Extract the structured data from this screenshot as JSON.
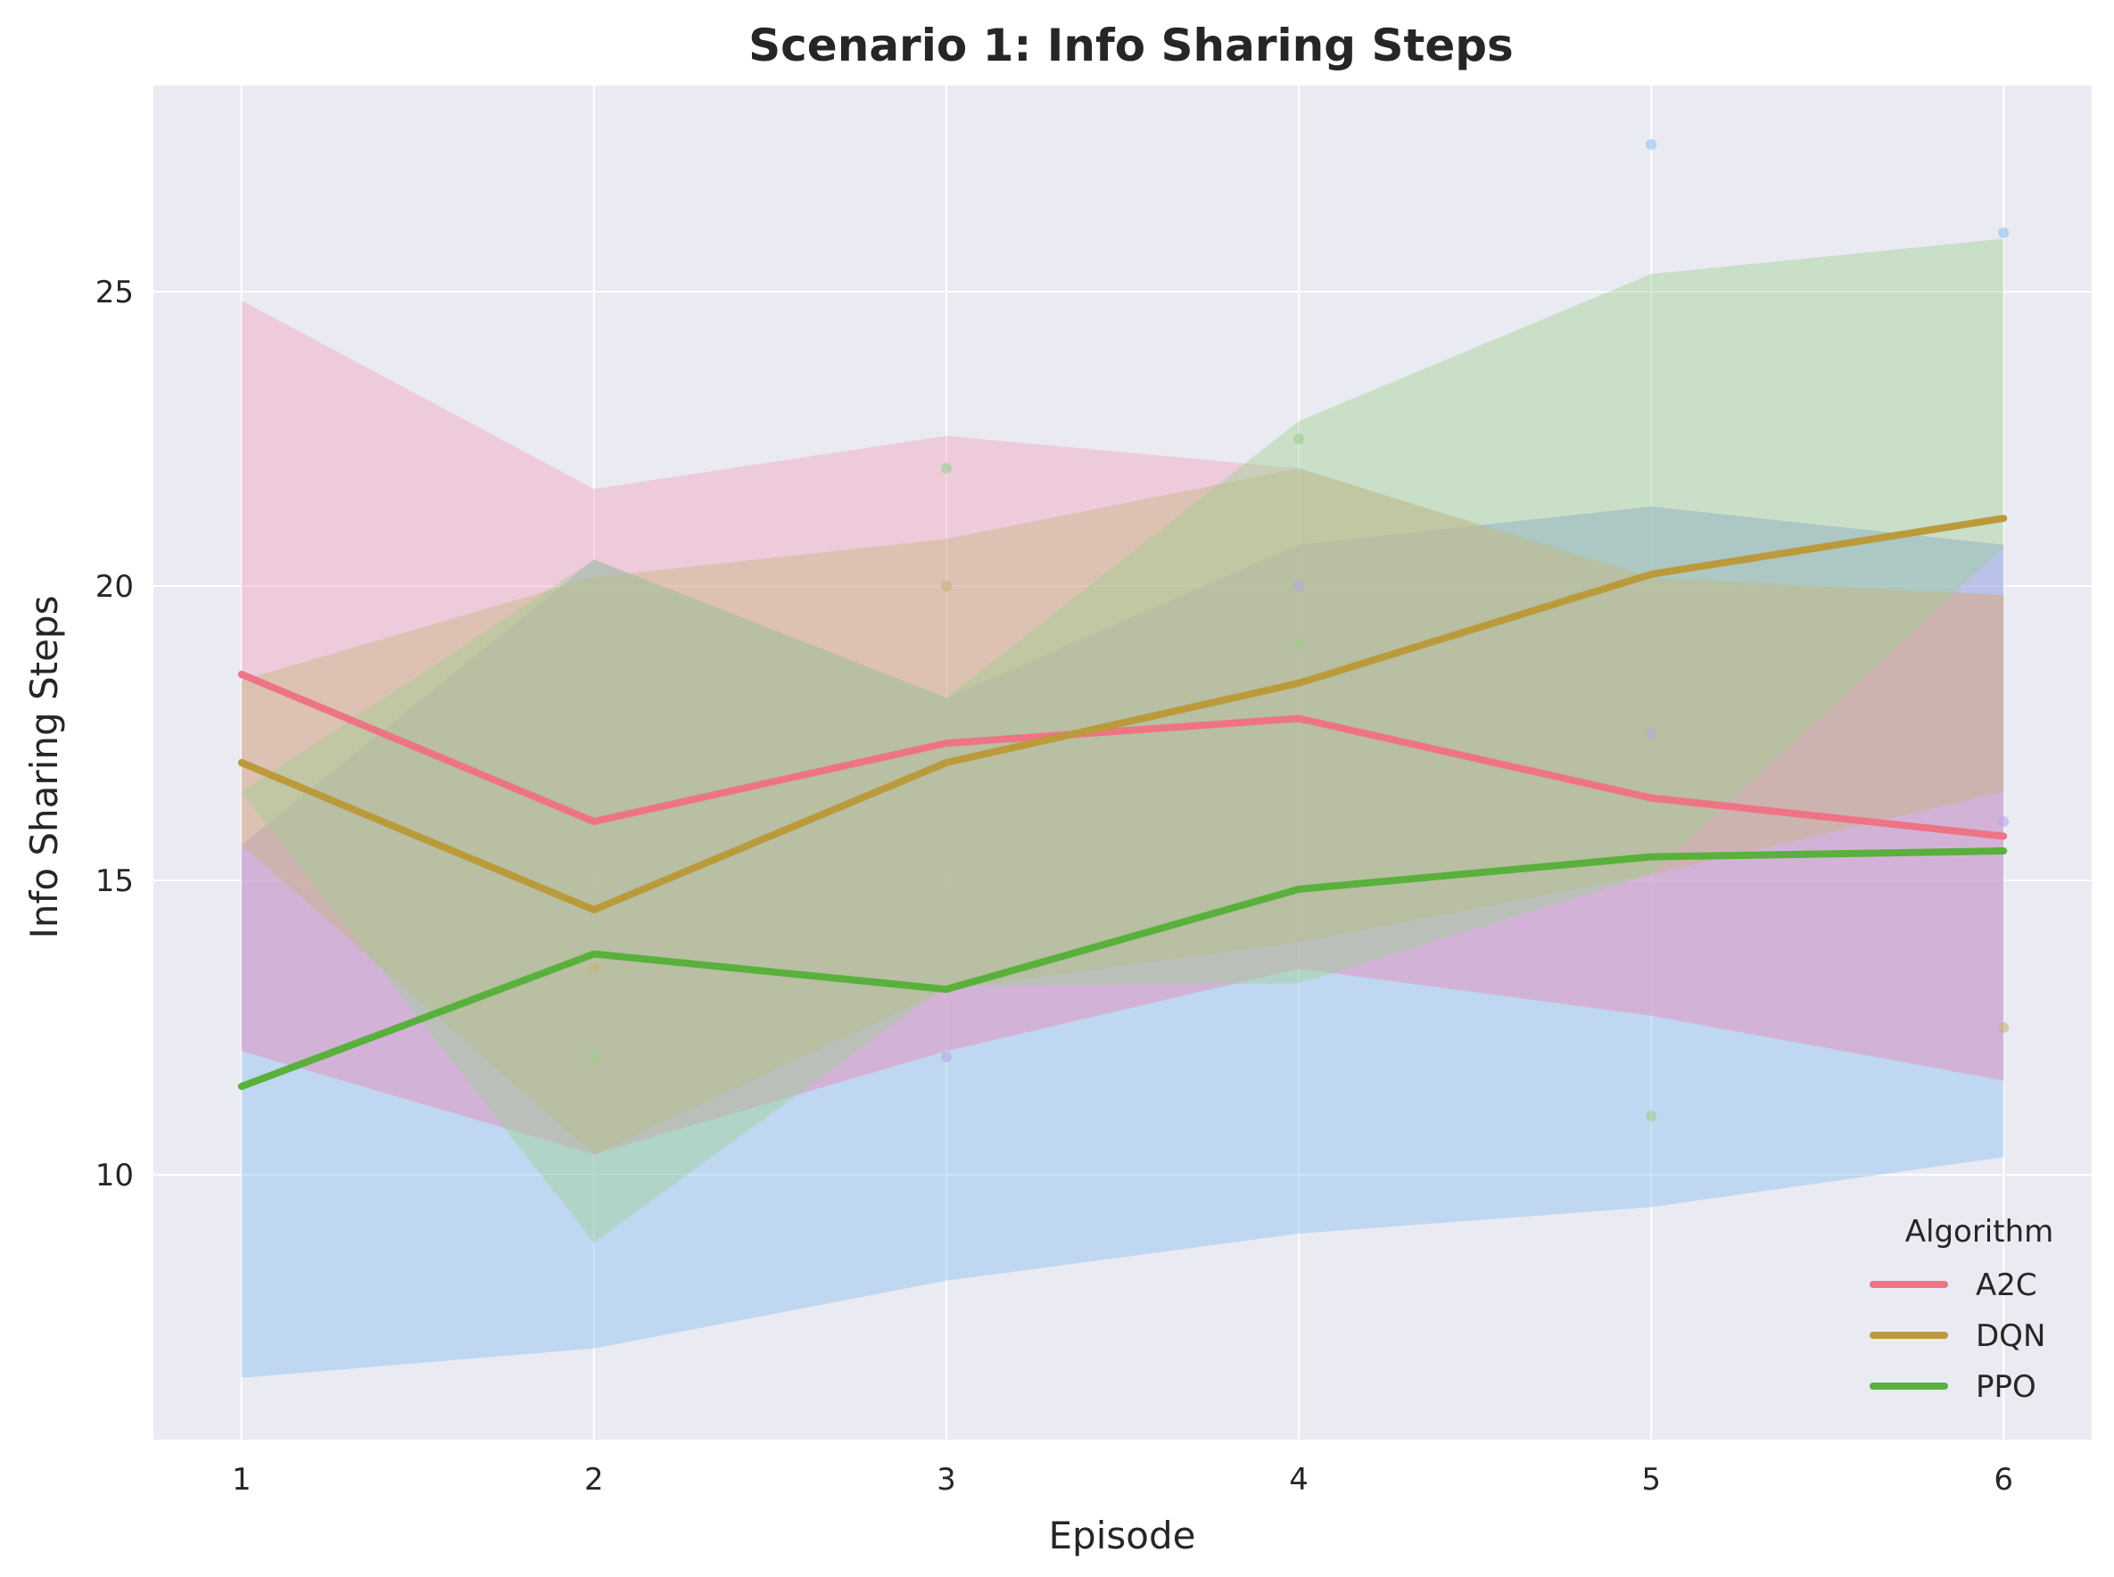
{
  "chart_data": {
    "type": "line",
    "title": "Scenario 1: Info Sharing Steps",
    "xlabel": "Episode",
    "ylabel": "Info Sharing Steps",
    "x": [
      1,
      2,
      3,
      4,
      5,
      6
    ],
    "xlim": [
      0.75,
      6.25
    ],
    "ylim": [
      5.5,
      28.5
    ],
    "yticks": [
      10,
      15,
      20,
      25
    ],
    "grid": true,
    "background_color": "#eaeaf2",
    "legend": {
      "title": "Algorithm",
      "placement": "lower-right"
    },
    "series": [
      {
        "name": "A2C",
        "color": "#ee7485",
        "values": [
          18.5,
          16.0,
          17.33,
          17.75,
          16.4,
          15.75
        ],
        "band_color": "#f2a0bc",
        "band_lower": [
          12.1,
          10.35,
          12.1,
          13.5,
          12.7,
          11.6
        ],
        "band_upper": [
          24.85,
          21.65,
          22.55,
          22.0,
          20.1,
          19.85
        ]
      },
      {
        "name": "DQN",
        "color": "#bb9a3b",
        "values": [
          17.0,
          14.5,
          17.0,
          18.35,
          20.2,
          21.15
        ],
        "band_color": "#c6b27a",
        "band_lower": [
          15.6,
          10.35,
          13.15,
          13.95,
          15.1,
          16.5
        ],
        "band_upper": [
          18.4,
          20.15,
          20.8,
          22.0,
          20.15,
          19.85
        ]
      },
      {
        "name": "PPO",
        "color": "#59b03c",
        "values": [
          11.5,
          13.75,
          13.15,
          14.85,
          15.4,
          15.5
        ],
        "band_color": "#9bcf8e",
        "band_lower": [
          16.5,
          8.85,
          13.2,
          13.25,
          15.1,
          20.65
        ],
        "band_upper": [
          16.5,
          20.45,
          18.1,
          22.8,
          25.3,
          25.9
        ]
      }
    ],
    "extra_bands": [
      {
        "color": "#8ec0f0",
        "lower": [
          6.55,
          7.05,
          8.2,
          9.0,
          9.45,
          10.3
        ],
        "upper": [
          15.6,
          20.45,
          18.1,
          20.7,
          21.35,
          20.7
        ]
      },
      {
        "color": "#b5a8e2",
        "lower": [
          12.1,
          10.35,
          12.1,
          13.5,
          12.7,
          11.6
        ],
        "upper": [
          15.6,
          20.45,
          18.1,
          20.7,
          21.35,
          20.7
        ]
      }
    ],
    "scatter_points": [
      {
        "x": 2,
        "y": 13.5,
        "color": "#c6b27a"
      },
      {
        "x": 2,
        "y": 12.0,
        "color": "#9bcf8e"
      },
      {
        "x": 3,
        "y": 22.0,
        "color": "#9bcf8e"
      },
      {
        "x": 3,
        "y": 20.0,
        "color": "#c6b27a"
      },
      {
        "x": 3,
        "y": 12.0,
        "color": "#b5a8e2"
      },
      {
        "x": 4,
        "y": 22.5,
        "color": "#9bcf8e"
      },
      {
        "x": 4,
        "y": 20.0,
        "color": "#b5a8e2"
      },
      {
        "x": 4,
        "y": 19.0,
        "color": "#9bcf8e"
      },
      {
        "x": 5,
        "y": 27.5,
        "color": "#8ec0f0"
      },
      {
        "x": 5,
        "y": 17.5,
        "color": "#b5a8e2"
      },
      {
        "x": 5,
        "y": 11.0,
        "color": "#9bcf8e"
      },
      {
        "x": 6,
        "y": 26.0,
        "color": "#8ec0f0"
      },
      {
        "x": 6,
        "y": 16.0,
        "color": "#b5a8e2"
      },
      {
        "x": 6,
        "y": 12.5,
        "color": "#c6b27a"
      }
    ]
  }
}
